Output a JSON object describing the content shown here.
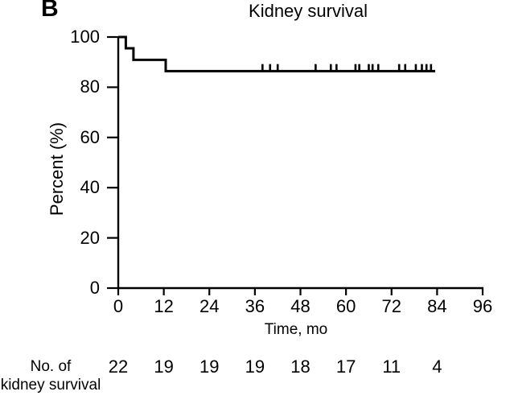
{
  "panel_label": "B",
  "colors": {
    "line": "#000000",
    "text": "#000000",
    "background": "#ffffff"
  },
  "chart_data": {
    "type": "line",
    "subtype": "kaplan-meier-step-curve",
    "title": "Kidney survival",
    "xlabel": "Time, mo",
    "ylabel": "Percent (%)",
    "xlim": [
      0,
      96
    ],
    "ylim": [
      0,
      100
    ],
    "x_ticks": [
      0,
      12,
      24,
      36,
      48,
      60,
      72,
      84,
      96
    ],
    "y_ticks": [
      0,
      20,
      40,
      60,
      80,
      100
    ],
    "grid": false,
    "legend": false,
    "series": [
      {
        "name": "Kidney survival",
        "step_points": [
          [
            0,
            100
          ],
          [
            2,
            100
          ],
          [
            2,
            95.5
          ],
          [
            4,
            95.5
          ],
          [
            4,
            90.9
          ],
          [
            12.5,
            90.9
          ],
          [
            12.5,
            86.4
          ],
          [
            83.5,
            86.4
          ]
        ],
        "censor_times": [
          38,
          40,
          42,
          52,
          56,
          57.5,
          62.5,
          63.5,
          66,
          67,
          68.5,
          74,
          75.6,
          78.4,
          80,
          81.2,
          82.4
        ],
        "censor_level": 86.4
      }
    ],
    "risk_table": {
      "label_line1": "No. of",
      "label_line2": "kidney survival",
      "times": [
        0,
        12,
        24,
        36,
        48,
        60,
        72,
        84
      ],
      "counts": [
        22,
        19,
        19,
        19,
        18,
        17,
        11,
        4
      ]
    }
  }
}
